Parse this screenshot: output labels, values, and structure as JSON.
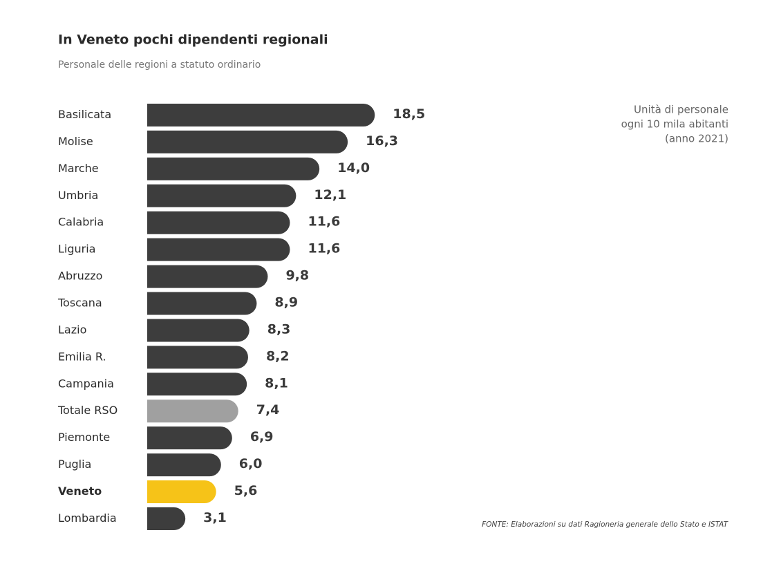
{
  "chart_data": {
    "type": "bar",
    "orientation": "horizontal",
    "title": "In Veneto pochi dipendenti regionali",
    "subtitle": "Personale delle regioni a statuto ordinario",
    "annotation": [
      "Unità di personale",
      "ogni 10 mila abitanti",
      "(anno 2021)"
    ],
    "source": "FONTE: Elaborazioni su dati Ragioneria generale dello Stato e ISTAT",
    "categories": [
      "Basilicata",
      "Molise",
      "Marche",
      "Umbria",
      "Calabria",
      "Liguria",
      "Abruzzo",
      "Toscana",
      "Lazio",
      "Emilia R.",
      "Campania",
      "Totale RSO",
      "Piemonte",
      "Puglia",
      "Veneto",
      "Lombardia"
    ],
    "values": [
      18.5,
      16.3,
      14.0,
      12.1,
      11.6,
      11.6,
      9.8,
      8.9,
      8.3,
      8.2,
      8.1,
      7.4,
      6.9,
      6.0,
      5.6,
      3.1
    ],
    "value_labels": [
      "18,5",
      "16,3",
      "14,0",
      "12,1",
      "11,6",
      "11,6",
      "9,8",
      "8,9",
      "8,3",
      "8,2",
      "8,1",
      "7,4",
      "6,9",
      "6,0",
      "5,6",
      "3,1"
    ],
    "colors": [
      "#3d3d3d",
      "#3d3d3d",
      "#3d3d3d",
      "#3d3d3d",
      "#3d3d3d",
      "#3d3d3d",
      "#3d3d3d",
      "#3d3d3d",
      "#3d3d3d",
      "#3d3d3d",
      "#3d3d3d",
      "#a0a0a0",
      "#3d3d3d",
      "#3d3d3d",
      "#f6c318",
      "#3d3d3d"
    ],
    "highlight_category": "Veneto"
  }
}
